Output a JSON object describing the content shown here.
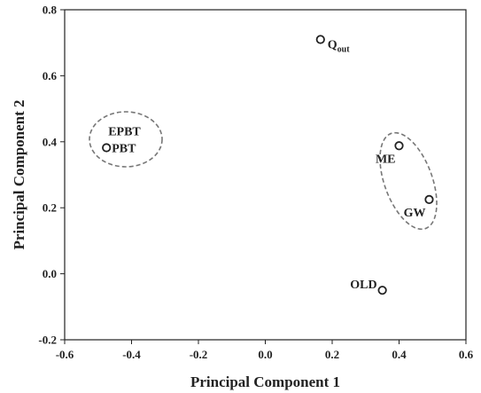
{
  "chart_data": {
    "type": "scatter",
    "title": "",
    "xlabel": "Principal Component 1",
    "ylabel": "Principal Component 2",
    "xlim": [
      -0.6,
      0.6
    ],
    "ylim": [
      -0.2,
      0.8
    ],
    "xticks": [
      "-0.6",
      "-0.4",
      "-0.2",
      "0.0",
      "0.2",
      "0.4",
      "0.6"
    ],
    "yticks": [
      "-0.2",
      "0.0",
      "0.2",
      "0.4",
      "0.6",
      "0.8"
    ],
    "grid": false,
    "legend": "none",
    "points": [
      {
        "label": "Q",
        "sub": "out",
        "x": 0.165,
        "y": 0.71,
        "label_anchor": "right-below"
      },
      {
        "label": "EPBT",
        "x": -0.475,
        "y": 0.382,
        "label_anchor": "above"
      },
      {
        "label": "PBT",
        "x": -0.475,
        "y": 0.382,
        "label_anchor": "right"
      },
      {
        "label": "ME",
        "x": 0.4,
        "y": 0.388,
        "label_anchor": "below-left"
      },
      {
        "label": "GW",
        "x": 0.49,
        "y": 0.225,
        "label_anchor": "below-left"
      },
      {
        "label": "OLD",
        "x": 0.35,
        "y": -0.05,
        "label_anchor": "left"
      }
    ],
    "groups": [
      {
        "members": [
          "EPBT",
          "PBT"
        ],
        "style": "dashed-ellipse"
      },
      {
        "members": [
          "ME",
          "GW"
        ],
        "style": "dashed-ellipse"
      }
    ],
    "colors": {
      "axis": "#222222",
      "marker": "#222222",
      "group": "#777777"
    }
  }
}
